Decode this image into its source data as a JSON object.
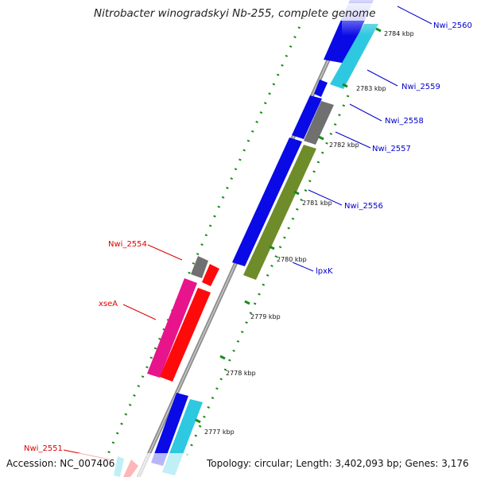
{
  "title": "Nitrobacter winogradskyi Nb-255, complete genome",
  "footer": {
    "accession": "Accession: NC_007406",
    "info": "Topology: circular; Length: 3,402,093 bp; Genes: 3,176"
  },
  "ticks": [
    "2784 kbp",
    "2783 kbp",
    "2782 kbp",
    "2781 kbp",
    "2780 kbp",
    "2779 kbp",
    "2778 kbp",
    "2777 kbp"
  ],
  "gene_labels": [
    "Nwi_2560",
    "Nwi_2559",
    "Nwi_2558",
    "Nwi_2557",
    "Nwi_2556",
    "lpxK",
    "Nwi_2554",
    "xseA",
    "Nwi_2551"
  ],
  "colors": {
    "forward_label": "#0000cc",
    "reverse_label": "#e00000",
    "blue": "#0a0ae6",
    "cyan": "#2ec8e0",
    "gray": "#707070",
    "olive": "#6e8c2a",
    "red": "#ff0a0a",
    "pink": "#e8148c",
    "backbone": "#8c8c8c",
    "gc_dots": "#1a8c1a"
  }
}
